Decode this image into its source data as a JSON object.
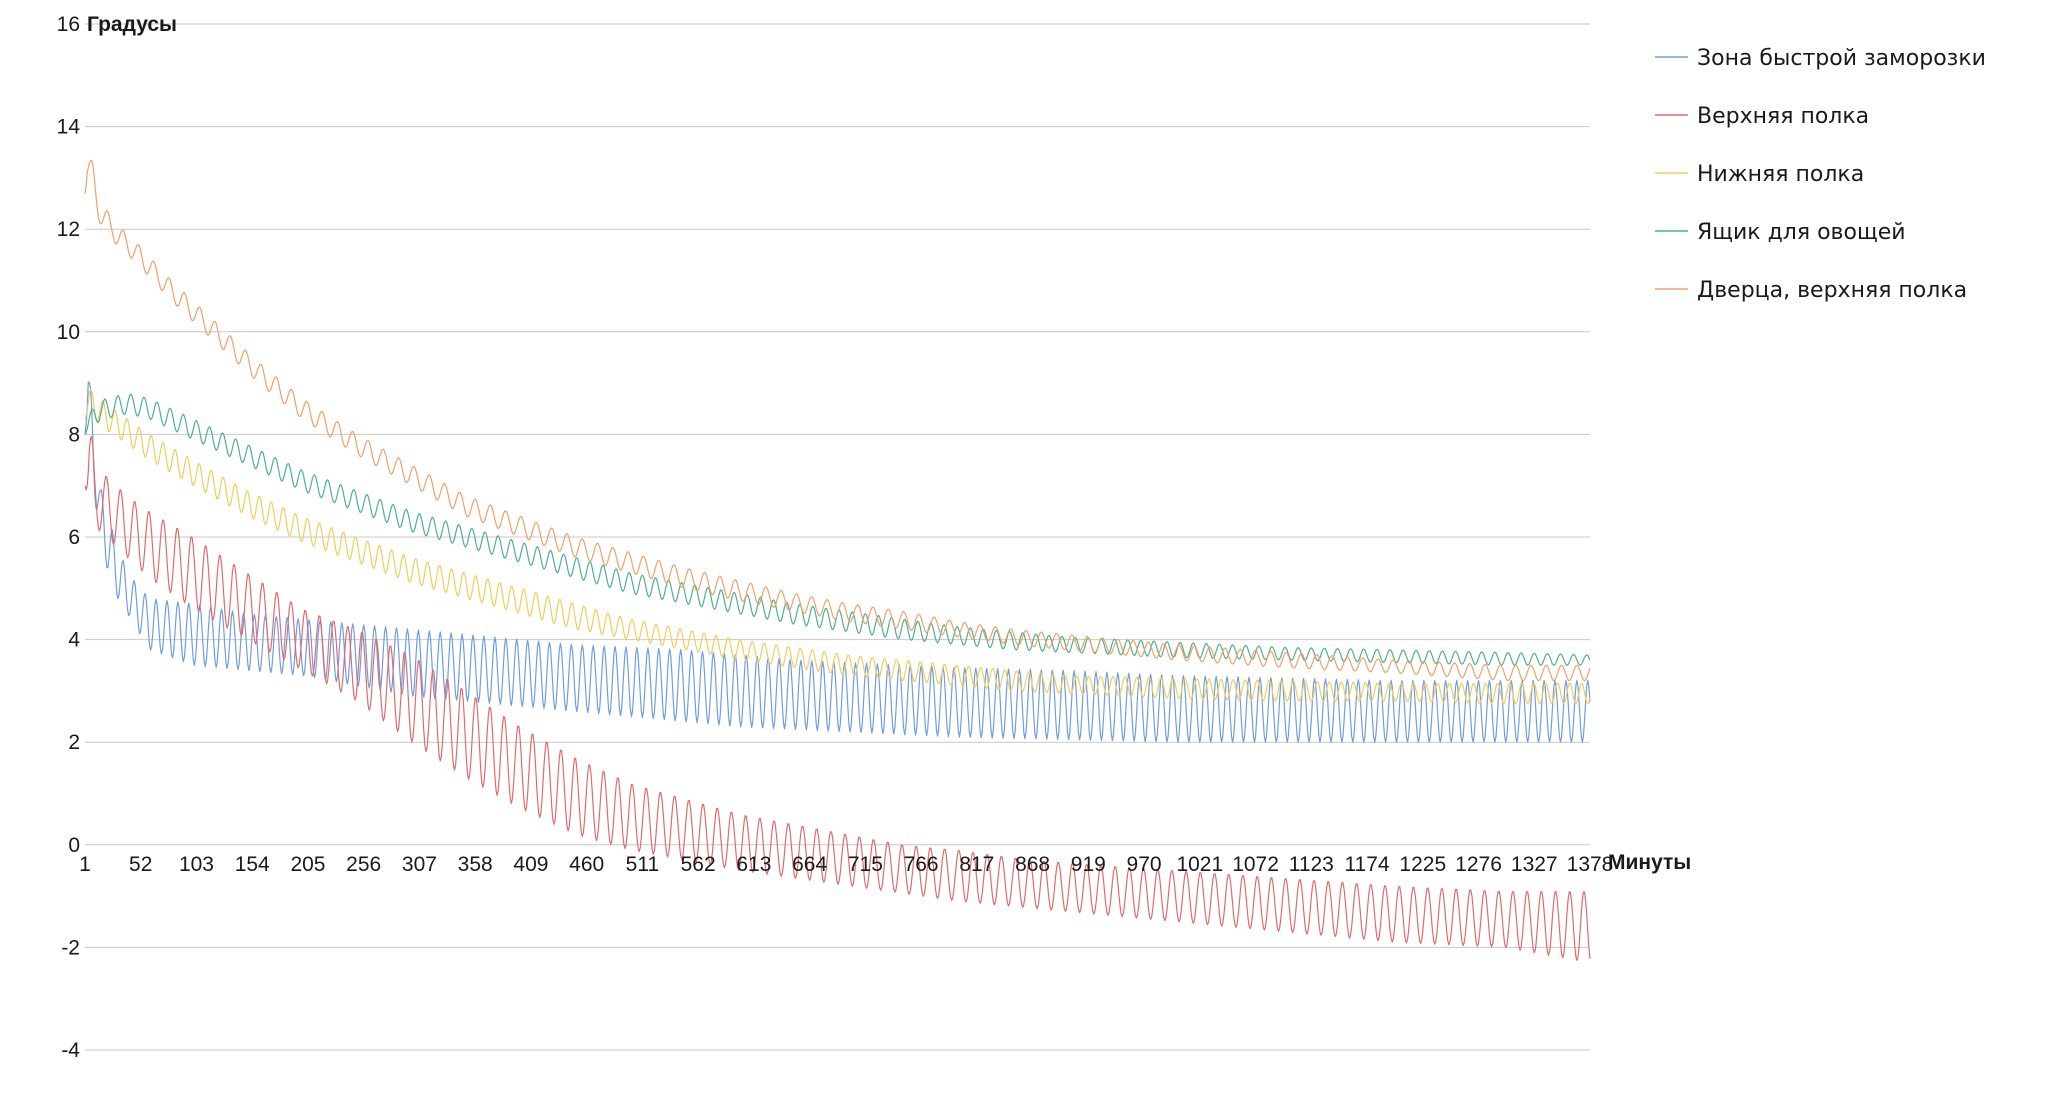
{
  "chart_data": {
    "type": "line",
    "xlabel": "Минуты",
    "ylabel": "Градусы",
    "ylim": [
      -4,
      16
    ],
    "yticks": [
      "-4",
      "-2",
      "0",
      "2",
      "4",
      "6",
      "8",
      "10",
      "12",
      "14",
      "16"
    ],
    "xlim": [
      1,
      1378
    ],
    "xticks": [
      "1",
      "52",
      "103",
      "154",
      "205",
      "256",
      "307",
      "358",
      "409",
      "460",
      "511",
      "562",
      "613",
      "664",
      "715",
      "766",
      "817",
      "868",
      "919",
      "970",
      "1021",
      "1072",
      "1123",
      "1174",
      "1225",
      "1276",
      "1327",
      "1378"
    ],
    "grid": true,
    "legend_position": "right",
    "series": [
      {
        "name": "Зона быстрой заморозки",
        "color": "#6f9ee0",
        "x": [
          1,
          4,
          8,
          15,
          25,
          40,
          60,
          100,
          150,
          200,
          250,
          300,
          350,
          400,
          450,
          500,
          550,
          600,
          650,
          700,
          750,
          800,
          900,
          1000,
          1100,
          1200,
          1300,
          1378
        ],
        "min": [
          8.0,
          8.5,
          7.0,
          6.0,
          5.0,
          4.5,
          3.8,
          3.5,
          3.4,
          3.3,
          3.1,
          2.9,
          2.8,
          2.7,
          2.6,
          2.5,
          2.4,
          2.3,
          2.25,
          2.2,
          2.15,
          2.1,
          2.05,
          2.0,
          2.0,
          2.0,
          2.0,
          2.0
        ],
        "max": [
          8.0,
          9.3,
          8.5,
          7.0,
          6.2,
          5.3,
          4.8,
          4.7,
          4.5,
          4.4,
          4.3,
          4.2,
          4.1,
          4.0,
          3.9,
          3.85,
          3.8,
          3.7,
          3.6,
          3.55,
          3.5,
          3.45,
          3.4,
          3.3,
          3.25,
          3.2,
          3.2,
          3.2
        ],
        "period": 10
      },
      {
        "name": "Верхняя полка",
        "color": "#e06b6b",
        "x": [
          1,
          5,
          10,
          20,
          40,
          60,
          100,
          150,
          200,
          250,
          300,
          350,
          400,
          450,
          500,
          550,
          600,
          650,
          700,
          750,
          800,
          850,
          900,
          1000,
          1100,
          1200,
          1300,
          1378
        ],
        "min": [
          7.0,
          6.5,
          6.2,
          6.0,
          5.6,
          5.2,
          4.6,
          4.0,
          3.4,
          2.8,
          2.0,
          1.3,
          0.7,
          0.2,
          -0.1,
          -0.3,
          -0.5,
          -0.65,
          -0.8,
          -0.95,
          -1.1,
          -1.2,
          -1.3,
          -1.5,
          -1.7,
          -1.9,
          -2.0,
          -2.3
        ],
        "max": [
          7.5,
          8.3,
          7.5,
          7.2,
          6.8,
          6.5,
          6.0,
          5.3,
          4.6,
          4.2,
          3.7,
          3.0,
          2.3,
          1.7,
          1.2,
          0.9,
          0.6,
          0.4,
          0.2,
          0.0,
          -0.1,
          -0.25,
          -0.35,
          -0.5,
          -0.65,
          -0.8,
          -0.9,
          -0.9
        ],
        "period": 13
      },
      {
        "name": "Нижняя полка",
        "color": "#f2cd5c",
        "x": [
          1,
          5,
          10,
          20,
          40,
          60,
          100,
          150,
          200,
          250,
          300,
          350,
          400,
          450,
          500,
          550,
          600,
          650,
          700,
          750,
          800,
          850,
          900,
          1000,
          1100,
          1200,
          1300,
          1378
        ],
        "min": [
          8.3,
          8.5,
          8.3,
          8.1,
          7.8,
          7.5,
          7.0,
          6.4,
          5.9,
          5.5,
          5.1,
          4.8,
          4.5,
          4.2,
          4.0,
          3.8,
          3.6,
          3.45,
          3.3,
          3.2,
          3.1,
          3.0,
          2.95,
          2.85,
          2.8,
          2.8,
          2.75,
          2.75
        ],
        "max": [
          8.3,
          8.9,
          8.8,
          8.6,
          8.3,
          8.0,
          7.5,
          6.9,
          6.4,
          6.0,
          5.6,
          5.3,
          5.0,
          4.7,
          4.4,
          4.2,
          4.0,
          3.85,
          3.7,
          3.6,
          3.5,
          3.4,
          3.3,
          3.25,
          3.2,
          3.15,
          3.15,
          3.15
        ],
        "period": 11
      },
      {
        "name": "Ящик для овощей",
        "color": "#4fb08d",
        "x": [
          1,
          5,
          10,
          20,
          40,
          60,
          100,
          150,
          200,
          250,
          300,
          350,
          400,
          450,
          500,
          550,
          600,
          650,
          700,
          750,
          800,
          850,
          900,
          1000,
          1100,
          1200,
          1300,
          1378
        ],
        "min": [
          8.0,
          8.1,
          8.2,
          8.3,
          8.4,
          8.3,
          7.9,
          7.4,
          6.9,
          6.5,
          6.1,
          5.8,
          5.5,
          5.2,
          4.9,
          4.7,
          4.5,
          4.3,
          4.15,
          4.0,
          3.9,
          3.8,
          3.75,
          3.65,
          3.6,
          3.55,
          3.5,
          3.5
        ],
        "max": [
          8.2,
          8.4,
          8.6,
          8.7,
          8.8,
          8.7,
          8.3,
          7.8,
          7.3,
          6.9,
          6.5,
          6.2,
          5.9,
          5.6,
          5.3,
          5.1,
          4.9,
          4.7,
          4.55,
          4.4,
          4.25,
          4.15,
          4.05,
          3.95,
          3.85,
          3.8,
          3.75,
          3.7
        ],
        "period": 12
      },
      {
        "name": "Дверца, верхняя полка",
        "color": "#f0a06a",
        "x": [
          1,
          3,
          6,
          12,
          25,
          50,
          80,
          120,
          160,
          200,
          250,
          300,
          350,
          400,
          450,
          500,
          550,
          600,
          650,
          700,
          750,
          800,
          850,
          900,
          1000,
          1100,
          1200,
          1300,
          1378
        ],
        "min": [
          12.7,
          12.9,
          12.6,
          12.2,
          11.8,
          11.3,
          10.6,
          9.8,
          9.0,
          8.3,
          7.6,
          7.0,
          6.4,
          6.0,
          5.6,
          5.3,
          5.0,
          4.75,
          4.55,
          4.35,
          4.2,
          4.05,
          3.9,
          3.8,
          3.6,
          3.45,
          3.35,
          3.2,
          3.2
        ],
        "max": [
          13.0,
          14.0,
          13.5,
          12.8,
          12.2,
          11.7,
          11.0,
          10.2,
          9.4,
          8.7,
          8.0,
          7.4,
          6.8,
          6.4,
          6.0,
          5.7,
          5.4,
          5.15,
          4.9,
          4.7,
          4.55,
          4.35,
          4.2,
          4.1,
          3.9,
          3.75,
          3.6,
          3.5,
          3.5
        ],
        "period": 14
      }
    ]
  }
}
